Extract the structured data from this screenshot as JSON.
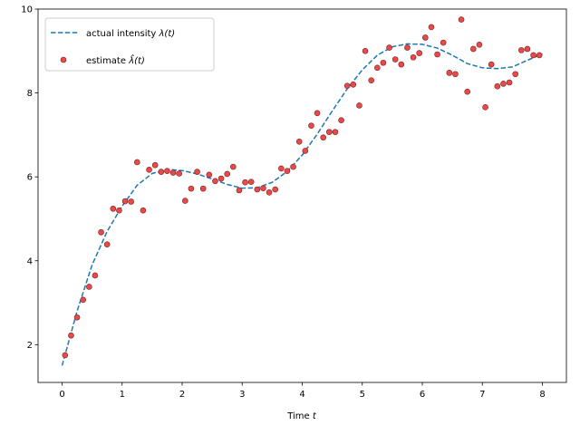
{
  "chart_data": {
    "type": "line",
    "title": "",
    "xlabel": "Time",
    "xlabel_var": "t",
    "ylabel": "",
    "xlim": [
      -0.4,
      8.4
    ],
    "ylim": [
      1.1,
      10.0
    ],
    "xticks": [
      0,
      1,
      2,
      3,
      4,
      5,
      6,
      7,
      8
    ],
    "yticks": [
      2,
      4,
      6,
      8,
      10
    ],
    "grid": false,
    "legend_position": "top-left",
    "series": [
      {
        "name": "actual intensity λ(t)",
        "kind": "line",
        "style": "dashed",
        "color": "#1f77b4",
        "x": [
          0,
          0.25,
          0.5,
          0.75,
          1,
          1.25,
          1.5,
          1.75,
          2,
          2.25,
          2.5,
          2.75,
          3,
          3.25,
          3.5,
          3.75,
          4,
          4.25,
          4.5,
          4.75,
          5,
          5.25,
          5.5,
          5.75,
          6,
          6.25,
          6.5,
          6.75,
          7,
          7.25,
          7.5,
          7.75,
          8
        ],
        "y": [
          1.5,
          2.8,
          3.9,
          4.7,
          5.3,
          5.8,
          6.08,
          6.18,
          6.15,
          6.07,
          5.95,
          5.82,
          5.73,
          5.74,
          5.87,
          6.13,
          6.52,
          7.02,
          7.57,
          8.1,
          8.55,
          8.9,
          9.1,
          9.17,
          9.16,
          9.07,
          8.9,
          8.7,
          8.6,
          8.58,
          8.62,
          8.78,
          8.93
        ]
      },
      {
        "name": "estimate λ̂(t)",
        "kind": "scatter",
        "color": "#e84a4a",
        "edge_color": "#7a1f1f",
        "x": [
          0.05,
          0.15,
          0.25,
          0.35,
          0.45,
          0.55,
          0.65,
          0.75,
          0.85,
          0.95,
          1.05,
          1.15,
          1.25,
          1.35,
          1.45,
          1.55,
          1.65,
          1.75,
          1.85,
          1.95,
          2.05,
          2.15,
          2.25,
          2.35,
          2.45,
          2.55,
          2.65,
          2.75,
          2.85,
          2.95,
          3.05,
          3.15,
          3.25,
          3.35,
          3.45,
          3.55,
          3.65,
          3.75,
          3.85,
          3.95,
          4.05,
          4.15,
          4.25,
          4.35,
          4.45,
          4.55,
          4.65,
          4.75,
          4.85,
          4.95,
          5.05,
          5.15,
          5.25,
          5.35,
          5.45,
          5.55,
          5.65,
          5.75,
          5.85,
          5.95,
          6.05,
          6.15,
          6.25,
          6.35,
          6.45,
          6.55,
          6.65,
          6.75,
          6.85,
          6.95,
          7.05,
          7.15,
          7.25,
          7.35,
          7.45,
          7.55,
          7.65,
          7.75,
          7.85,
          7.95
        ],
        "y": [
          1.75,
          2.22,
          2.65,
          3.07,
          3.38,
          3.65,
          4.68,
          4.39,
          5.24,
          5.2,
          5.42,
          5.41,
          6.35,
          5.2,
          6.17,
          6.28,
          6.12,
          6.14,
          6.1,
          6.08,
          5.43,
          5.72,
          6.12,
          5.72,
          6.05,
          5.9,
          5.96,
          6.07,
          6.24,
          5.68,
          5.87,
          5.88,
          5.7,
          5.73,
          5.63,
          5.7,
          6.2,
          6.14,
          6.24,
          6.84,
          6.62,
          7.22,
          7.52,
          6.94,
          7.07,
          7.07,
          7.35,
          8.17,
          8.2,
          7.7,
          9.0,
          8.3,
          8.6,
          8.72,
          9.08,
          8.8,
          8.68,
          9.08,
          8.85,
          8.95,
          9.32,
          9.57,
          8.92,
          9.2,
          8.48,
          8.45,
          9.75,
          8.03,
          9.05,
          9.15,
          7.66,
          8.68,
          8.16,
          8.22,
          8.25,
          8.45,
          9.02,
          9.05,
          8.9,
          8.9
        ]
      }
    ],
    "legend": {
      "line_label": "actual intensity",
      "line_symbol": "λ(t)",
      "scatter_label": "estimate",
      "scatter_symbol": "λ̂(t)"
    }
  }
}
